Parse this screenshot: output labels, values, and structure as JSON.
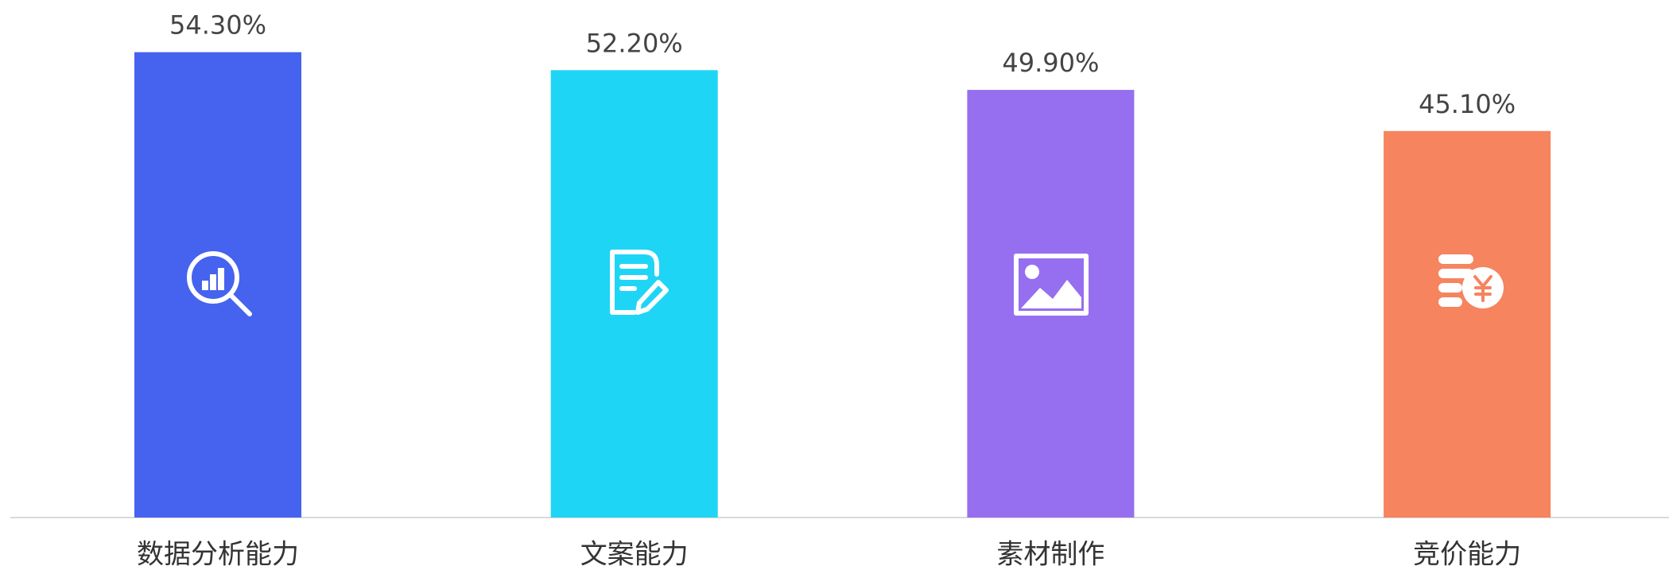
{
  "chart_data": {
    "type": "bar",
    "categories": [
      "数据分析能力",
      "文案能力",
      "素材制作",
      "竞价能力"
    ],
    "values": [
      54.3,
      52.2,
      49.9,
      45.1
    ],
    "value_labels": [
      "54.30%",
      "52.20%",
      "49.90%",
      "45.10%"
    ],
    "colors": [
      "#4563ef",
      "#1fd5f5",
      "#966ff0",
      "#f5845f"
    ]
  }
}
